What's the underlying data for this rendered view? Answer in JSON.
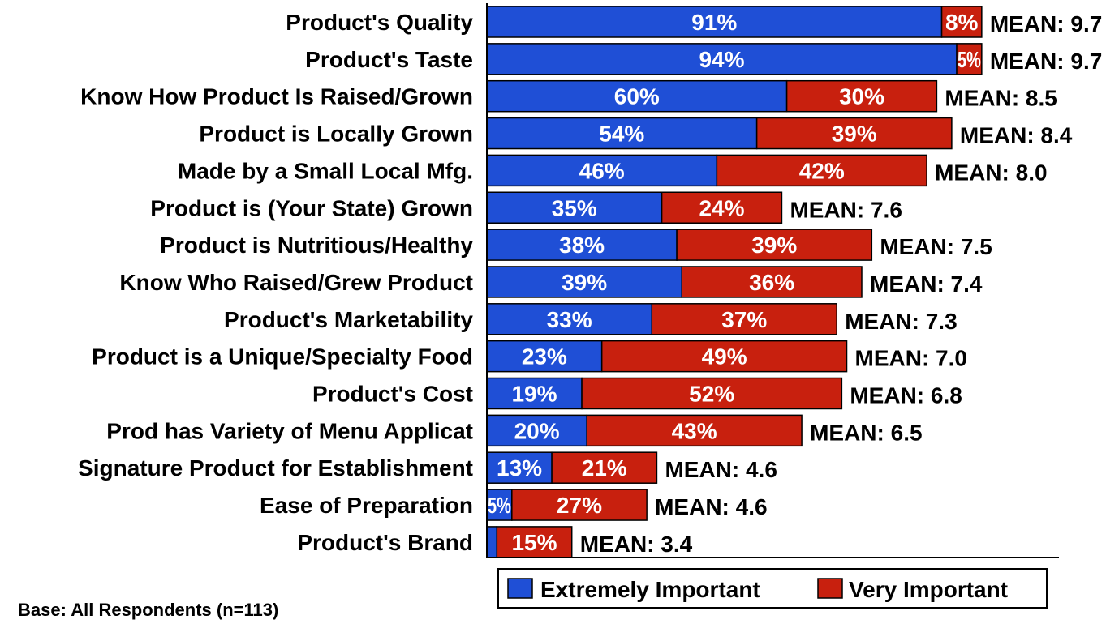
{
  "chart_data": {
    "type": "bar",
    "orientation": "horizontal",
    "stacked": true,
    "categories": [
      "Product's Quality",
      "Product's Taste",
      "Know How Product Is Raised/Grown",
      "Product is Locally Grown",
      "Made by a Small Local Mfg.",
      "Product is (Your State) Grown",
      "Product is Nutritious/Healthy",
      "Know Who Raised/Grew Product",
      "Product's Marketability",
      "Product is a Unique/Specialty Food",
      "Product's Cost",
      "Prod has Variety of Menu Applicat",
      "Signature Product for Establishment",
      "Ease of Preparation",
      "Product's Brand"
    ],
    "series": [
      {
        "name": "Extremely Important",
        "color": "#1f4fd6",
        "values": [
          91,
          94,
          60,
          54,
          46,
          35,
          38,
          39,
          33,
          23,
          19,
          20,
          13,
          5,
          2
        ],
        "labels": [
          "91%",
          "94%",
          "60%",
          "54%",
          "46%",
          "35%",
          "38%",
          "39%",
          "33%",
          "23%",
          "19%",
          "20%",
          "13%",
          "5%",
          ""
        ]
      },
      {
        "name": "Very Important",
        "color": "#c8200e",
        "values": [
          8,
          5,
          30,
          39,
          42,
          24,
          39,
          36,
          37,
          49,
          52,
          43,
          21,
          27,
          15
        ],
        "labels": [
          "8%",
          "5%",
          "30%",
          "39%",
          "42%",
          "24%",
          "39%",
          "36%",
          "37%",
          "49%",
          "52%",
          "43%",
          "21%",
          "27%",
          "15%"
        ]
      }
    ],
    "means": [
      "MEAN: 9.7",
      "MEAN: 9.7",
      "MEAN: 8.5",
      "MEAN: 8.4",
      "MEAN: 8.0",
      "MEAN: 7.6",
      "MEAN: 7.5",
      "MEAN: 7.4",
      "MEAN: 7.3",
      "MEAN: 7.0",
      "MEAN: 6.8",
      "MEAN: 6.5",
      "MEAN: 4.6",
      "MEAN: 4.6",
      "MEAN: 3.4"
    ],
    "xlim": [
      0,
      100
    ],
    "grid": false,
    "legend_position": "bottom-right",
    "footnote": "Base: All Respondents (n=113)"
  }
}
